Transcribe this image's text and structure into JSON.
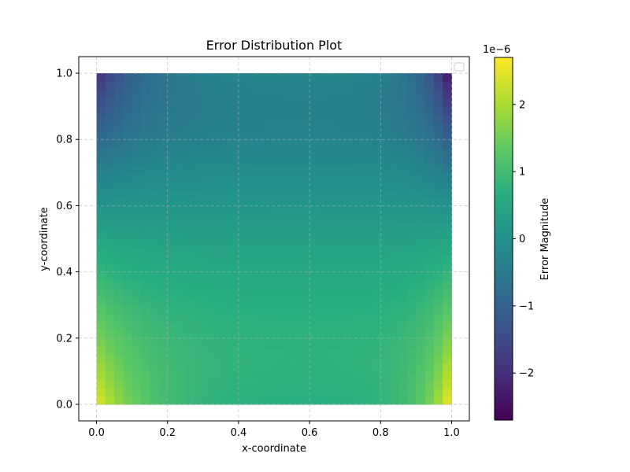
{
  "chart_data": {
    "type": "heatmap",
    "title": "Error Distribution Plot",
    "xlabel": "x-coordinate",
    "ylabel": "y-coordinate",
    "xlim": [
      -0.05,
      1.05
    ],
    "ylim": [
      -0.05,
      1.05
    ],
    "x_ticks": [
      "0.0",
      "0.2",
      "0.4",
      "0.6",
      "0.8",
      "1.0"
    ],
    "y_ticks": [
      "0.0",
      "0.2",
      "0.4",
      "0.6",
      "0.8",
      "1.0"
    ],
    "x_tick_values": [
      0.0,
      0.2,
      0.4,
      0.6,
      0.8,
      1.0
    ],
    "y_tick_values": [
      0.0,
      0.2,
      0.4,
      0.6,
      0.8,
      1.0
    ],
    "grid": true,
    "legend": "top-right (empty)",
    "colormap": "viridis",
    "colorbar": {
      "label": "Error Magnitude",
      "offset_text": "1e−6",
      "range": [
        -2.7,
        2.7
      ],
      "tick_values": [
        -2,
        -1,
        0,
        1,
        2
      ],
      "tick_labels": [
        "−2",
        "−1",
        "0",
        "1",
        "2"
      ]
    },
    "z_description_values": {
      "x_domain": [
        0,
        1
      ],
      "y_domain": [
        0,
        1
      ],
      "corner_top_left": -1.8,
      "corner_top_right": -2.5,
      "corner_bottom_left": 2.3,
      "corner_bottom_right": 2.5,
      "center": 0.2
    }
  }
}
